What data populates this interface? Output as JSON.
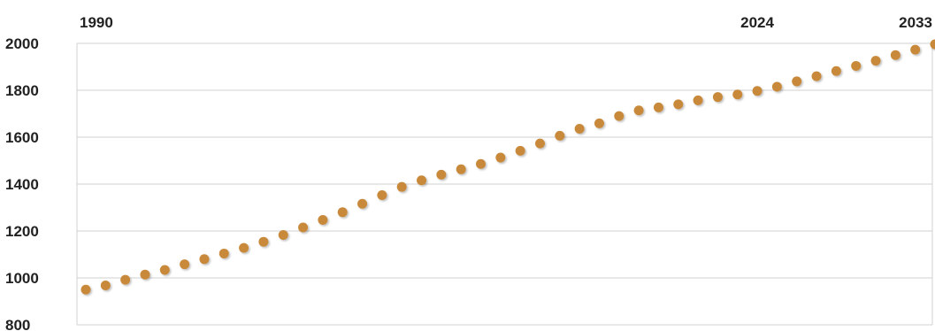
{
  "colors": {
    "background": "#ffffff",
    "grid": "#d0d0d0",
    "point": "#c8893a",
    "text": "#222222"
  },
  "chart_data": {
    "type": "scatter",
    "title": "",
    "xlabel": "",
    "ylabel": "",
    "grid": true,
    "legend": "none",
    "xlim": [
      1990,
      2033
    ],
    "ylim": [
      800,
      2000
    ],
    "y_ticks": [
      "2000",
      "1800",
      "1600",
      "1400",
      "1200",
      "1000",
      "800"
    ],
    "x_labels": [
      {
        "x": 1990,
        "label": "1990"
      },
      {
        "x": 2024,
        "label": "2024"
      },
      {
        "x": 2033,
        "label": "2033"
      }
    ],
    "x": [
      1990,
      1991,
      1992,
      1993,
      1994,
      1995,
      1996,
      1997,
      1998,
      1999,
      2000,
      2001,
      2002,
      2003,
      2004,
      2005,
      2006,
      2007,
      2008,
      2009,
      2010,
      2011,
      2012,
      2013,
      2014,
      2015,
      2016,
      2017,
      2018,
      2019,
      2020,
      2021,
      2022,
      2023,
      2024,
      2025,
      2026,
      2027,
      2028,
      2029,
      2030,
      2031,
      2032,
      2033
    ],
    "y": [
      950,
      968,
      992,
      1014,
      1034,
      1058,
      1080,
      1104,
      1128,
      1154,
      1183,
      1215,
      1247,
      1280,
      1316,
      1353,
      1388,
      1416,
      1440,
      1463,
      1486,
      1513,
      1542,
      1573,
      1606,
      1636,
      1659,
      1690,
      1714,
      1727,
      1740,
      1757,
      1771,
      1782,
      1797,
      1815,
      1838,
      1860,
      1882,
      1904,
      1926,
      1950,
      1973,
      1996
    ]
  }
}
